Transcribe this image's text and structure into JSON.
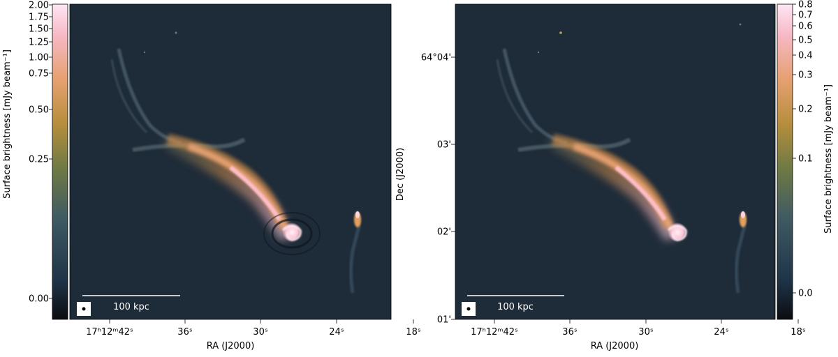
{
  "left_panel": {
    "colorbar_label": "Surface brightness [mJy beam⁻¹]",
    "colorbar_ticks": [
      "2.00",
      "1.75",
      "1.50",
      "1.25",
      "1.00",
      "0.75",
      "0.50",
      "0.25",
      "0.00"
    ],
    "scale_bar_label": "100 kpc",
    "ra_ticks": [
      "17ʰ12ᵐ42ˢ",
      "36ˢ",
      "30ˢ",
      "24ˢ",
      "18ˢ"
    ],
    "xlabel": "RA (J2000)",
    "ylabel": "Dec (J2000)"
  },
  "right_panel": {
    "colorbar_label": "Surface brightness [mJy beam⁻¹]",
    "colorbar_ticks": [
      "0.8",
      "0.7",
      "0.6",
      "0.5",
      "0.4",
      "0.3",
      "0.2",
      "0.1",
      "0.0"
    ],
    "scale_bar_label": "100 kpc",
    "ra_ticks": [
      "17ʰ12ᵐ42ˢ",
      "36ˢ",
      "30ˢ",
      "24ˢ",
      "18ˢ"
    ],
    "dec_ticks": [
      "64°04'",
      "03'",
      "02'",
      "01'"
    ],
    "xlabel": "RA (J2000)"
  },
  "colors": {
    "background_sky": "#1e2b38",
    "emission_low": "#c58a4a",
    "emission_high": "#ffc9d9"
  }
}
